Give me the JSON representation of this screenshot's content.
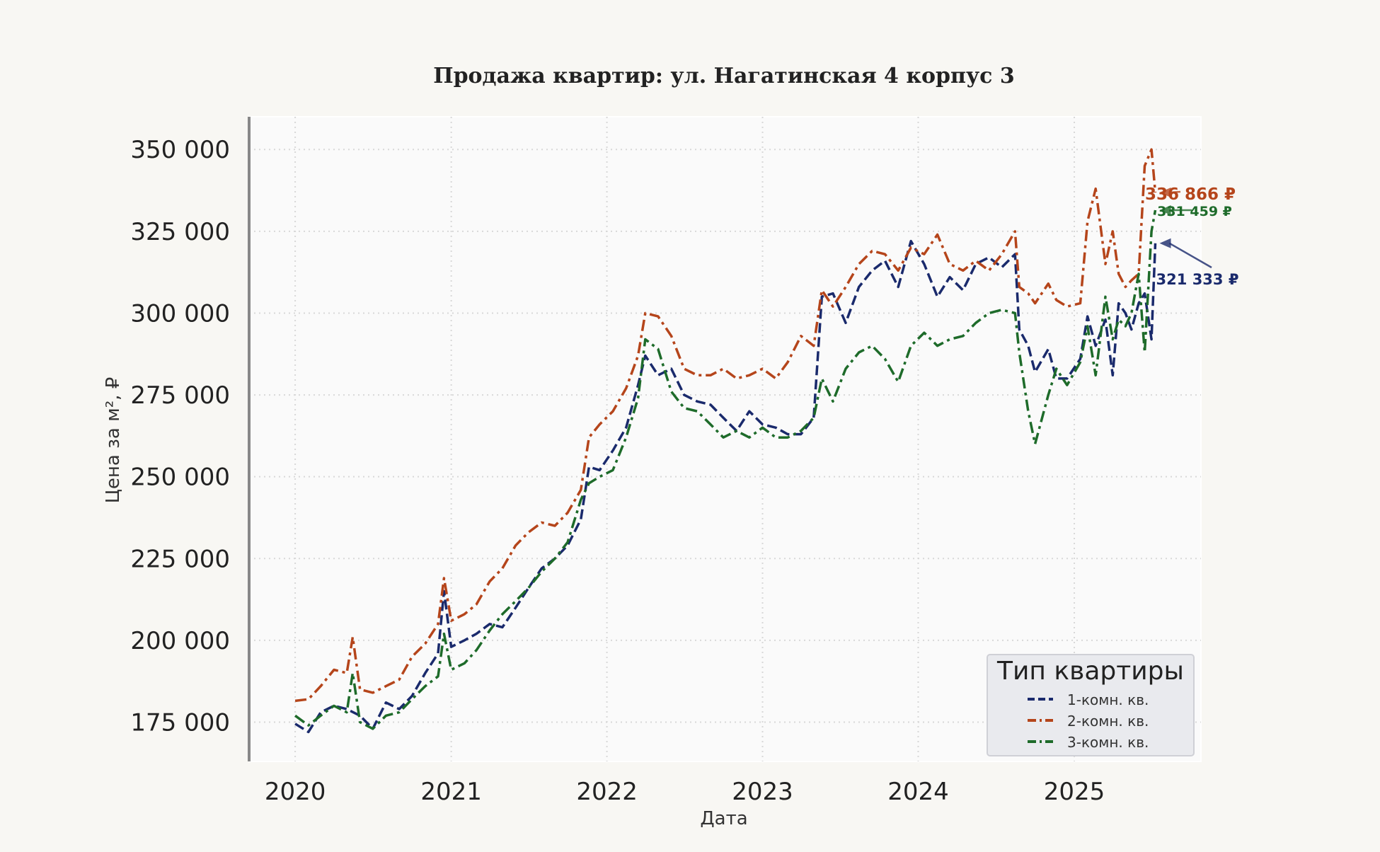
{
  "chart_data": {
    "type": "line",
    "title": "Продажа квартир: ул. Нагатинская 4 корпус 3",
    "xlabel": "Дата",
    "ylabel": "Цена за м², ₽",
    "x_range": [
      "2019-09-15",
      "2025-10-25"
    ],
    "ylim": [
      163000,
      360000
    ],
    "x_ticks": [
      {
        "date": "2020-01-01",
        "label": "2020"
      },
      {
        "date": "2021-01-01",
        "label": "2021"
      },
      {
        "date": "2022-01-01",
        "label": "2022"
      },
      {
        "date": "2023-01-01",
        "label": "2023"
      },
      {
        "date": "2024-01-01",
        "label": "2024"
      },
      {
        "date": "2025-01-01",
        "label": "2025"
      }
    ],
    "y_ticks": [
      {
        "value": 175000,
        "label": "175 000"
      },
      {
        "value": 200000,
        "label": "200 000"
      },
      {
        "value": 225000,
        "label": "225 000"
      },
      {
        "value": 250000,
        "label": "250 000"
      },
      {
        "value": 275000,
        "label": "275 000"
      },
      {
        "value": 300000,
        "label": "300 000"
      },
      {
        "value": 325000,
        "label": "325 000"
      },
      {
        "value": 350000,
        "label": "350 000"
      }
    ],
    "grid": true,
    "legend": {
      "title": "Тип квартиры",
      "placement": "bottom-right"
    },
    "series": [
      {
        "name": "1-комн. кв.",
        "color": "#1a2a6c",
        "dash": "dashed",
        "last_value_label": "321 333 ₽",
        "points": [
          [
            "2020-01-01",
            174500
          ],
          [
            "2020-02-01",
            172000
          ],
          [
            "2020-03-01",
            178000
          ],
          [
            "2020-04-01",
            180000
          ],
          [
            "2020-05-01",
            179000
          ],
          [
            "2020-06-01",
            177000
          ],
          [
            "2020-07-01",
            173000
          ],
          [
            "2020-08-01",
            181000
          ],
          [
            "2020-09-01",
            179000
          ],
          [
            "2020-10-01",
            183000
          ],
          [
            "2020-11-01",
            190000
          ],
          [
            "2020-12-01",
            196000
          ],
          [
            "2020-12-15",
            215000
          ],
          [
            "2021-01-01",
            198000
          ],
          [
            "2021-02-01",
            200000
          ],
          [
            "2021-03-01",
            202000
          ],
          [
            "2021-04-01",
            205000
          ],
          [
            "2021-05-01",
            204000
          ],
          [
            "2021-06-01",
            210000
          ],
          [
            "2021-07-01",
            216000
          ],
          [
            "2021-08-01",
            222000
          ],
          [
            "2021-09-01",
            225000
          ],
          [
            "2021-10-01",
            229000
          ],
          [
            "2021-11-01",
            237000
          ],
          [
            "2021-11-20",
            253000
          ],
          [
            "2021-12-15",
            252000
          ],
          [
            "2022-01-15",
            258000
          ],
          [
            "2022-02-15",
            265000
          ],
          [
            "2022-03-15",
            278000
          ],
          [
            "2022-04-01",
            287000
          ],
          [
            "2022-05-01",
            281000
          ],
          [
            "2022-06-01",
            283000
          ],
          [
            "2022-07-01",
            275000
          ],
          [
            "2022-08-01",
            273000
          ],
          [
            "2022-09-01",
            272000
          ],
          [
            "2022-10-01",
            268000
          ],
          [
            "2022-11-01",
            264000
          ],
          [
            "2022-12-01",
            270000
          ],
          [
            "2023-01-01",
            266000
          ],
          [
            "2023-02-01",
            265000
          ],
          [
            "2023-03-01",
            263000
          ],
          [
            "2023-04-01",
            263000
          ],
          [
            "2023-05-01",
            268000
          ],
          [
            "2023-05-20",
            305000
          ],
          [
            "2023-06-15",
            306000
          ],
          [
            "2023-07-15",
            297000
          ],
          [
            "2023-08-15",
            308000
          ],
          [
            "2023-09-15",
            313000
          ],
          [
            "2023-10-15",
            316000
          ],
          [
            "2023-11-15",
            308000
          ],
          [
            "2023-12-15",
            322000
          ],
          [
            "2024-01-15",
            315000
          ],
          [
            "2024-02-15",
            305000
          ],
          [
            "2024-03-15",
            311000
          ],
          [
            "2024-04-15",
            307000
          ],
          [
            "2024-05-15",
            315000
          ],
          [
            "2024-06-15",
            317000
          ],
          [
            "2024-07-15",
            314000
          ],
          [
            "2024-08-15",
            318000
          ],
          [
            "2024-08-25",
            295000
          ],
          [
            "2024-09-15",
            290000
          ],
          [
            "2024-10-01",
            282000
          ],
          [
            "2024-11-01",
            289000
          ],
          [
            "2024-11-20",
            280000
          ],
          [
            "2024-12-15",
            280000
          ],
          [
            "2025-01-15",
            286000
          ],
          [
            "2025-02-01",
            299000
          ],
          [
            "2025-02-20",
            290000
          ],
          [
            "2025-03-15",
            298000
          ],
          [
            "2025-04-01",
            281000
          ],
          [
            "2025-04-15",
            303000
          ],
          [
            "2025-05-01",
            300000
          ],
          [
            "2025-05-15",
            295000
          ],
          [
            "2025-06-01",
            303000
          ],
          [
            "2025-06-15",
            306000
          ],
          [
            "2025-07-01",
            292000
          ],
          [
            "2025-07-10",
            321333
          ]
        ]
      },
      {
        "name": "2-комн. кв.",
        "color": "#b5451b",
        "dash": "dashdot",
        "last_value_label": "336 866 ₽",
        "points": [
          [
            "2020-01-01",
            181500
          ],
          [
            "2020-02-01",
            182000
          ],
          [
            "2020-03-01",
            186000
          ],
          [
            "2020-04-01",
            191000
          ],
          [
            "2020-05-01",
            190000
          ],
          [
            "2020-05-15",
            201000
          ],
          [
            "2020-06-01",
            185000
          ],
          [
            "2020-07-01",
            184000
          ],
          [
            "2020-08-01",
            186000
          ],
          [
            "2020-09-01",
            188000
          ],
          [
            "2020-10-01",
            195000
          ],
          [
            "2020-11-01",
            199000
          ],
          [
            "2020-12-01",
            205000
          ],
          [
            "2020-12-15",
            219000
          ],
          [
            "2021-01-01",
            206000
          ],
          [
            "2021-02-01",
            208000
          ],
          [
            "2021-03-01",
            211000
          ],
          [
            "2021-04-01",
            218000
          ],
          [
            "2021-05-01",
            222000
          ],
          [
            "2021-06-01",
            229000
          ],
          [
            "2021-07-01",
            233000
          ],
          [
            "2021-08-01",
            236000
          ],
          [
            "2021-09-01",
            235000
          ],
          [
            "2021-10-01",
            239000
          ],
          [
            "2021-11-01",
            246000
          ],
          [
            "2021-11-20",
            262000
          ],
          [
            "2021-12-15",
            266000
          ],
          [
            "2022-01-15",
            270000
          ],
          [
            "2022-02-15",
            277000
          ],
          [
            "2022-03-15",
            287000
          ],
          [
            "2022-04-01",
            300000
          ],
          [
            "2022-05-01",
            299000
          ],
          [
            "2022-06-01",
            293000
          ],
          [
            "2022-07-01",
            283000
          ],
          [
            "2022-08-01",
            281000
          ],
          [
            "2022-09-01",
            281000
          ],
          [
            "2022-10-01",
            283000
          ],
          [
            "2022-11-01",
            280000
          ],
          [
            "2022-12-01",
            281000
          ],
          [
            "2023-01-01",
            283000
          ],
          [
            "2023-02-01",
            280000
          ],
          [
            "2023-03-01",
            285000
          ],
          [
            "2023-04-01",
            293000
          ],
          [
            "2023-05-01",
            290000
          ],
          [
            "2023-05-20",
            307000
          ],
          [
            "2023-06-15",
            302000
          ],
          [
            "2023-07-15",
            308000
          ],
          [
            "2023-08-15",
            315000
          ],
          [
            "2023-09-15",
            319000
          ],
          [
            "2023-10-15",
            318000
          ],
          [
            "2023-11-15",
            313000
          ],
          [
            "2023-12-15",
            320000
          ],
          [
            "2024-01-15",
            318000
          ],
          [
            "2024-02-15",
            324000
          ],
          [
            "2024-03-15",
            315000
          ],
          [
            "2024-04-15",
            313000
          ],
          [
            "2024-05-15",
            316000
          ],
          [
            "2024-06-15",
            313000
          ],
          [
            "2024-07-15",
            318000
          ],
          [
            "2024-08-15",
            325000
          ],
          [
            "2024-08-25",
            308000
          ],
          [
            "2024-09-15",
            306000
          ],
          [
            "2024-10-01",
            303000
          ],
          [
            "2024-11-01",
            309000
          ],
          [
            "2024-11-20",
            304000
          ],
          [
            "2024-12-15",
            302000
          ],
          [
            "2025-01-15",
            303000
          ],
          [
            "2025-02-01",
            328000
          ],
          [
            "2025-02-20",
            338000
          ],
          [
            "2025-03-15",
            315000
          ],
          [
            "2025-04-01",
            325000
          ],
          [
            "2025-04-15",
            312000
          ],
          [
            "2025-05-01",
            308000
          ],
          [
            "2025-05-15",
            310000
          ],
          [
            "2025-06-01",
            312000
          ],
          [
            "2025-06-15",
            345000
          ],
          [
            "2025-07-01",
            350000
          ],
          [
            "2025-07-10",
            336866
          ]
        ]
      },
      {
        "name": "3-комн. кв.",
        "color": "#1e6b2a",
        "dash": "dashdot",
        "last_value_label": "331 459 ₽",
        "points": [
          [
            "2020-01-01",
            177000
          ],
          [
            "2020-02-01",
            174000
          ],
          [
            "2020-03-01",
            177000
          ],
          [
            "2020-04-01",
            180000
          ],
          [
            "2020-05-01",
            178000
          ],
          [
            "2020-05-15",
            190000
          ],
          [
            "2020-06-01",
            175000
          ],
          [
            "2020-07-01",
            173000
          ],
          [
            "2020-08-01",
            177000
          ],
          [
            "2020-09-01",
            178000
          ],
          [
            "2020-10-01",
            182000
          ],
          [
            "2020-11-01",
            186000
          ],
          [
            "2020-12-01",
            189000
          ],
          [
            "2020-12-15",
            202000
          ],
          [
            "2021-01-01",
            191000
          ],
          [
            "2021-02-01",
            193000
          ],
          [
            "2021-03-01",
            197000
          ],
          [
            "2021-04-01",
            203000
          ],
          [
            "2021-05-01",
            208000
          ],
          [
            "2021-06-01",
            212000
          ],
          [
            "2021-07-01",
            216000
          ],
          [
            "2021-08-01",
            221000
          ],
          [
            "2021-09-01",
            225000
          ],
          [
            "2021-10-01",
            230000
          ],
          [
            "2021-11-01",
            243000
          ],
          [
            "2021-11-20",
            248000
          ],
          [
            "2021-12-15",
            250000
          ],
          [
            "2022-01-15",
            252000
          ],
          [
            "2022-02-15",
            262000
          ],
          [
            "2022-03-15",
            274000
          ],
          [
            "2022-04-01",
            292000
          ],
          [
            "2022-05-01",
            289000
          ],
          [
            "2022-06-01",
            276000
          ],
          [
            "2022-07-01",
            271000
          ],
          [
            "2022-08-01",
            270000
          ],
          [
            "2022-09-01",
            266000
          ],
          [
            "2022-10-01",
            262000
          ],
          [
            "2022-11-01",
            264000
          ],
          [
            "2022-12-01",
            262000
          ],
          [
            "2023-01-01",
            265000
          ],
          [
            "2023-02-01",
            262000
          ],
          [
            "2023-03-01",
            262000
          ],
          [
            "2023-04-01",
            264000
          ],
          [
            "2023-05-01",
            268000
          ],
          [
            "2023-05-20",
            280000
          ],
          [
            "2023-06-15",
            273000
          ],
          [
            "2023-07-15",
            283000
          ],
          [
            "2023-08-15",
            288000
          ],
          [
            "2023-09-15",
            290000
          ],
          [
            "2023-10-15",
            286000
          ],
          [
            "2023-11-15",
            279000
          ],
          [
            "2023-12-15",
            290000
          ],
          [
            "2024-01-15",
            294000
          ],
          [
            "2024-02-15",
            290000
          ],
          [
            "2024-03-15",
            292000
          ],
          [
            "2024-04-15",
            293000
          ],
          [
            "2024-05-15",
            297000
          ],
          [
            "2024-06-15",
            300000
          ],
          [
            "2024-07-15",
            301000
          ],
          [
            "2024-08-15",
            300000
          ],
          [
            "2024-08-25",
            288000
          ],
          [
            "2024-09-15",
            270000
          ],
          [
            "2024-10-01",
            260000
          ],
          [
            "2024-11-01",
            275000
          ],
          [
            "2024-11-20",
            283000
          ],
          [
            "2024-12-15",
            278000
          ],
          [
            "2025-01-15",
            285000
          ],
          [
            "2025-02-01",
            296000
          ],
          [
            "2025-02-20",
            281000
          ],
          [
            "2025-03-15",
            305000
          ],
          [
            "2025-04-01",
            292000
          ],
          [
            "2025-04-15",
            298000
          ],
          [
            "2025-05-01",
            296000
          ],
          [
            "2025-05-15",
            300000
          ],
          [
            "2025-06-01",
            312000
          ],
          [
            "2025-06-15",
            288000
          ],
          [
            "2025-07-01",
            325000
          ],
          [
            "2025-07-10",
            331459
          ]
        ]
      }
    ]
  }
}
